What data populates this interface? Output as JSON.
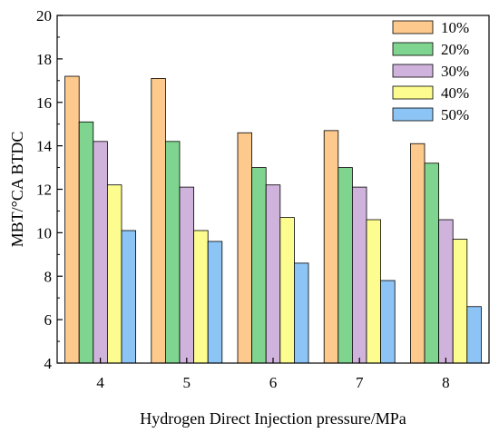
{
  "chart_data": {
    "type": "bar",
    "title": "",
    "xlabel": "Hydrogen Direct Injection pressure/MPa",
    "ylabel": "MBT/°CA BTDC",
    "categories": [
      "4",
      "5",
      "6",
      "7",
      "8"
    ],
    "ylim": [
      4,
      20
    ],
    "yticks": [
      "4",
      "6",
      "8",
      "10",
      "12",
      "14",
      "16",
      "18",
      "20"
    ],
    "legend_position": "top-right",
    "grid": false,
    "series": [
      {
        "name": "10%",
        "color": "#fdc98d",
        "values": [
          17.2,
          17.1,
          14.6,
          14.7,
          14.1
        ]
      },
      {
        "name": "20%",
        "color": "#7fd58f",
        "values": [
          15.1,
          14.2,
          13.0,
          13.0,
          13.2
        ]
      },
      {
        "name": "30%",
        "color": "#d0b3dc",
        "values": [
          14.2,
          12.1,
          12.2,
          12.1,
          10.6
        ]
      },
      {
        "name": "40%",
        "color": "#fdfd8f",
        "values": [
          12.2,
          10.1,
          10.7,
          10.6,
          9.7
        ]
      },
      {
        "name": "50%",
        "color": "#8dc4f6",
        "values": [
          10.1,
          9.6,
          8.6,
          7.8,
          6.6
        ]
      }
    ]
  }
}
